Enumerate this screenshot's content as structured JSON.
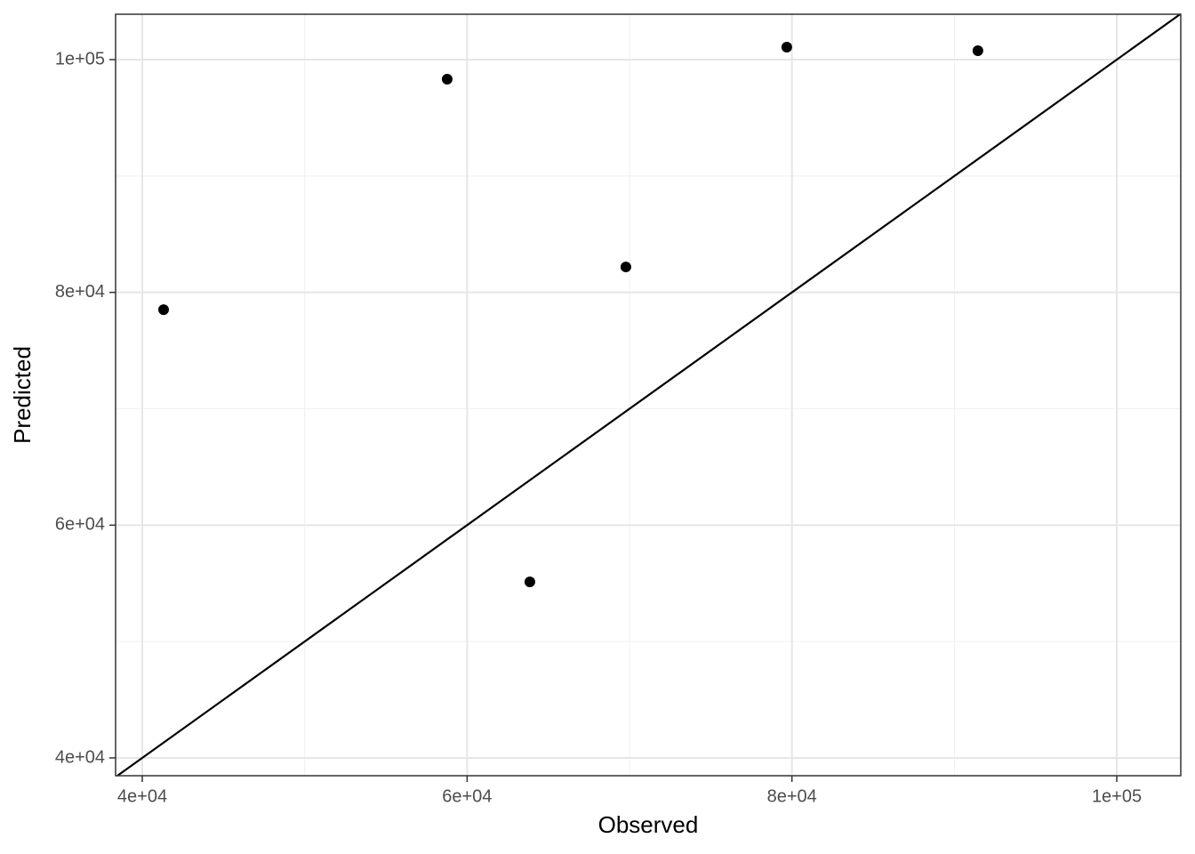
{
  "chart_data": {
    "type": "scatter",
    "x_label": "Observed",
    "y_label": "Predicted",
    "x": [
      41314,
      58774,
      63864,
      69776,
      79682,
      91450
    ],
    "values": [
      78517,
      98318,
      55122,
      82187,
      101070,
      100765
    ],
    "color": "#000000",
    "xlim": [
      38358,
      103940
    ],
    "ylim": [
      38470,
      103900
    ],
    "xticks": [
      {
        "value": 40000,
        "label": "4e+04"
      },
      {
        "value": 60000,
        "label": "6e+04"
      },
      {
        "value": 80000,
        "label": "8e+04"
      },
      {
        "value": 100000,
        "label": "1e+05"
      }
    ],
    "yticks": [
      {
        "value": 40000,
        "label": "4e+04"
      },
      {
        "value": 60000,
        "label": "6e+04"
      },
      {
        "value": 80000,
        "label": "8e+04"
      },
      {
        "value": 100000,
        "label": "1e+05"
      }
    ],
    "xminor": [
      50000,
      70000,
      90000
    ],
    "yminor": [
      50000,
      70000,
      90000
    ],
    "grid": true,
    "abline": {
      "slope": 1,
      "intercept": 0
    }
  }
}
